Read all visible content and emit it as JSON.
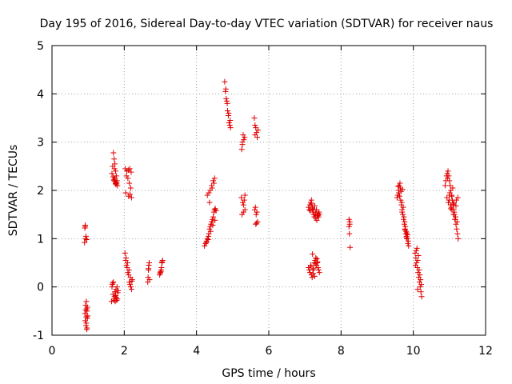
{
  "chart_data": {
    "type": "scatter",
    "title": "Day 195 of 2016, Sidereal Day-to-day VTEC variation (SDTVAR) for receiver naus",
    "xlabel": "GPS time / hours",
    "ylabel": "SDTVAR / TECUs",
    "xlim": [
      0,
      12
    ],
    "ylim": [
      -1,
      5
    ],
    "xticks": [
      "0",
      "2",
      "4",
      "6",
      "8",
      "10",
      "12"
    ],
    "yticks": [
      "-1",
      "0",
      "1",
      "2",
      "3",
      "4",
      "5"
    ],
    "grid": true,
    "marker": "plus",
    "series_color": "#e00000",
    "series": [
      {
        "x": [
          0.9,
          0.91,
          0.92,
          0.93,
          0.94,
          0.95,
          0.96,
          0.97,
          0.98,
          0.99,
          0.92,
          0.94,
          0.96,
          0.98,
          0.91,
          0.93,
          0.95,
          0.97,
          0.92,
          0.96,
          0.93,
          0.95,
          1.65,
          1.66,
          1.67,
          1.68,
          1.69,
          1.7,
          1.71,
          1.72,
          1.73,
          1.74,
          1.75,
          1.76,
          1.77,
          1.78,
          1.79,
          1.8,
          1.81,
          1.82,
          1.83,
          1.7,
          1.72,
          1.74,
          1.76,
          1.78,
          1.8,
          1.68,
          1.73,
          1.79,
          1.66,
          1.71,
          1.75,
          1.77,
          1.81,
          1.69,
          1.74,
          1.78,
          1.72,
          1.76,
          2.02,
          2.04,
          2.06,
          2.08,
          2.1,
          2.12,
          2.14,
          2.16,
          2.18,
          2.2,
          2.22,
          2.05,
          2.09,
          2.13,
          2.17,
          2.21,
          2.03,
          2.07,
          2.11,
          2.15,
          2.19,
          2.06,
          2.1,
          2.14,
          2.18,
          2.04,
          2.12,
          2.16,
          2.2,
          2.65,
          2.66,
          2.67,
          2.68,
          2.69,
          2.7,
          2.67,
          2.98,
          3.0,
          3.02,
          3.04,
          3.06,
          2.99,
          3.01,
          3.03,
          3.05,
          4.22,
          4.25,
          4.28,
          4.3,
          4.32,
          4.34,
          4.36,
          4.38,
          4.4,
          4.42,
          4.44,
          4.46,
          4.48,
          4.5,
          4.52,
          4.54,
          4.3,
          4.34,
          4.38,
          4.42,
          4.46,
          4.5,
          4.27,
          4.33,
          4.39,
          4.45,
          4.51,
          4.36,
          4.43,
          4.48,
          4.78,
          4.8,
          4.82,
          4.84,
          4.86,
          4.88,
          4.9,
          4.92,
          4.94,
          4.81,
          4.85,
          4.89,
          4.93,
          5.25,
          5.27,
          5.29,
          5.31,
          5.33,
          5.26,
          5.3,
          5.34,
          5.28,
          5.32,
          5.24,
          5.3,
          5.34,
          5.27,
          5.6,
          5.62,
          5.64,
          5.66,
          5.68,
          5.7,
          5.63,
          5.67,
          5.61,
          5.65,
          5.69,
          5.64,
          5.66,
          5.62,
          7.1,
          7.12,
          7.14,
          7.16,
          7.18,
          7.2,
          7.22,
          7.24,
          7.26,
          7.28,
          7.3,
          7.32,
          7.34,
          7.36,
          7.38,
          7.4,
          7.15,
          7.21,
          7.27,
          7.33,
          7.39,
          7.18,
          7.24,
          7.3,
          7.36,
          7.1,
          7.12,
          7.14,
          7.16,
          7.18,
          7.2,
          7.22,
          7.24,
          7.26,
          7.28,
          7.3,
          7.32,
          7.34,
          7.36,
          7.38,
          7.4,
          7.17,
          7.23,
          7.29,
          7.35,
          7.21,
          7.27,
          7.33,
          8.22,
          8.24,
          8.23,
          8.25,
          8.24,
          8.22,
          9.55,
          9.57,
          9.59,
          9.61,
          9.63,
          9.65,
          9.67,
          9.69,
          9.71,
          9.73,
          9.75,
          9.77,
          9.79,
          9.81,
          9.83,
          9.85,
          9.87,
          9.6,
          9.64,
          9.68,
          9.72,
          9.76,
          9.8,
          9.84,
          9.62,
          9.66,
          9.7,
          9.74,
          9.78,
          9.82,
          9.86,
          9.58,
          9.69,
          9.77,
          9.81,
          10.05,
          10.07,
          10.09,
          10.11,
          10.13,
          10.15,
          10.17,
          10.19,
          10.21,
          10.23,
          10.08,
          10.12,
          10.16,
          10.2,
          10.1,
          10.14,
          10.18,
          10.06,
          10.22,
          10.12,
          10.88,
          10.9,
          10.92,
          10.94,
          10.96,
          10.98,
          11.0,
          11.02,
          11.04,
          11.06,
          11.08,
          11.1,
          11.12,
          11.14,
          11.16,
          11.18,
          11.2,
          11.22,
          11.24,
          10.93,
          10.97,
          11.01,
          11.05,
          11.09,
          11.13,
          11.17,
          11.21,
          10.95,
          10.99,
          11.03,
          11.07,
          11.11,
          11.15,
          11.19,
          11.23,
          11.0,
          11.06,
          11.12,
          11.18,
          11.04,
          11.1
        ],
        "y": [
          0.92,
          1.22,
          1.28,
          1.0,
          1.05,
          -0.3,
          -0.45,
          -0.5,
          -0.42,
          -0.6,
          -0.7,
          -0.8,
          -0.88,
          -0.65,
          -0.55,
          -0.48,
          -0.75,
          -0.85,
          1.25,
          0.98,
          -0.38,
          -0.62,
          -0.3,
          0.0,
          0.05,
          0.08,
          -0.15,
          0.1,
          -0.25,
          -0.28,
          -0.2,
          -0.1,
          -0.3,
          -0.18,
          -0.05,
          -0.22,
          -0.28,
          0.0,
          -0.25,
          -0.12,
          -0.08,
          2.78,
          2.65,
          2.55,
          2.4,
          2.3,
          2.2,
          2.5,
          2.45,
          2.15,
          2.35,
          2.22,
          2.18,
          2.12,
          2.1,
          2.28,
          2.25,
          2.16,
          2.2,
          2.14,
          0.7,
          0.55,
          0.45,
          0.4,
          0.3,
          0.25,
          0.1,
          0.05,
          0.0,
          -0.05,
          0.15,
          0.6,
          0.5,
          0.35,
          0.2,
          0.12,
          2.45,
          2.4,
          2.42,
          2.45,
          2.38,
          2.3,
          2.25,
          2.15,
          2.05,
          1.95,
          1.88,
          1.92,
          1.85,
          0.1,
          0.2,
          0.35,
          0.45,
          0.5,
          0.15,
          0.38,
          0.25,
          0.3,
          0.35,
          0.5,
          0.55,
          0.28,
          0.32,
          0.4,
          0.52,
          0.85,
          0.9,
          0.95,
          1.0,
          0.98,
          1.1,
          1.2,
          1.25,
          1.3,
          1.35,
          1.4,
          1.45,
          1.55,
          1.6,
          1.62,
          1.58,
          1.9,
          1.95,
          2.0,
          2.1,
          2.2,
          2.25,
          0.92,
          1.05,
          1.15,
          1.28,
          1.38,
          1.75,
          2.05,
          2.15,
          4.25,
          4.05,
          3.9,
          3.85,
          3.65,
          3.55,
          3.4,
          3.35,
          3.3,
          4.1,
          3.8,
          3.6,
          3.45,
          2.85,
          3.0,
          3.15,
          3.05,
          3.1,
          1.5,
          1.55,
          1.6,
          1.75,
          1.8,
          1.85,
          1.7,
          1.9,
          2.95,
          3.5,
          3.35,
          3.3,
          3.2,
          3.1,
          3.25,
          1.65,
          1.55,
          1.6,
          1.5,
          1.35,
          1.3,
          1.32,
          3.15,
          1.65,
          1.6,
          1.7,
          1.75,
          1.8,
          1.65,
          1.55,
          1.5,
          1.45,
          1.5,
          1.55,
          1.6,
          1.48,
          1.52,
          1.45,
          1.5,
          1.58,
          1.62,
          1.68,
          1.38,
          1.55,
          1.72,
          1.6,
          1.42,
          1.48,
          0.4,
          0.35,
          0.3,
          0.45,
          0.25,
          0.2,
          0.35,
          0.38,
          0.5,
          0.55,
          0.6,
          0.45,
          0.5,
          0.4,
          0.35,
          0.3,
          0.42,
          0.28,
          0.48,
          0.52,
          0.68,
          0.22,
          0.58,
          1.4,
          1.3,
          1.1,
          0.82,
          1.35,
          1.25,
          1.85,
          1.9,
          2.0,
          2.1,
          2.15,
          1.8,
          1.7,
          1.6,
          1.5,
          1.4,
          1.3,
          1.2,
          1.1,
          1.05,
          1.0,
          0.9,
          0.85,
          1.95,
          2.05,
          1.75,
          1.65,
          1.35,
          1.15,
          1.08,
          1.88,
          1.98,
          2.02,
          1.45,
          1.25,
          1.12,
          0.95,
          2.08,
          1.55,
          1.18,
          1.02,
          0.7,
          0.6,
          0.5,
          0.4,
          0.3,
          0.2,
          0.1,
          0.0,
          -0.1,
          -0.2,
          0.75,
          0.55,
          0.35,
          0.15,
          0.8,
          0.65,
          0.25,
          0.45,
          0.05,
          -0.05,
          2.1,
          2.2,
          2.3,
          2.35,
          2.4,
          2.3,
          2.2,
          2.1,
          2.0,
          1.9,
          1.8,
          1.7,
          1.6,
          1.5,
          1.4,
          1.3,
          1.2,
          1.1,
          1.0,
          1.85,
          1.75,
          1.95,
          1.65,
          2.05,
          1.55,
          1.45,
          1.35,
          2.25,
          1.8,
          1.7,
          1.6,
          1.5,
          1.4,
          1.8,
          1.85,
          1.9,
          1.88,
          1.75,
          1.68,
          1.62,
          1.72
        ]
      }
    ]
  }
}
